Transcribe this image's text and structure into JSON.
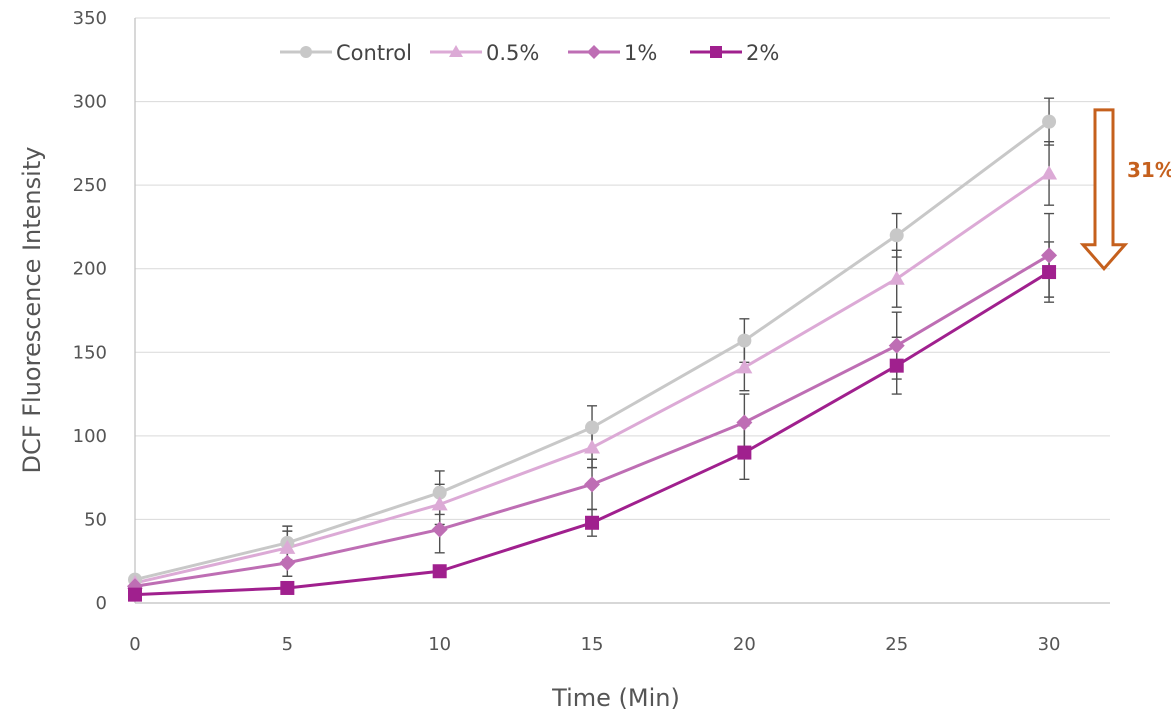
{
  "chart_data": {
    "type": "line",
    "title": "",
    "xlabel": "Time (Min)",
    "ylabel": "DCF Fluorescence Intensity",
    "x": [
      0,
      5,
      10,
      15,
      20,
      25,
      30
    ],
    "xlim": [
      0,
      32
    ],
    "ylim": [
      0,
      350
    ],
    "yticks": [
      0,
      50,
      100,
      150,
      200,
      250,
      300,
      350
    ],
    "xticks": [
      0,
      5,
      10,
      15,
      20,
      25,
      30
    ],
    "grid": "horizontal",
    "legend_position": "top",
    "series": [
      {
        "name": "Control",
        "color": "#c8c8c8",
        "marker": "circle",
        "values": [
          14,
          36,
          66,
          105,
          157,
          220,
          288
        ],
        "errors": [
          2,
          10,
          13,
          13,
          13,
          13,
          14
        ]
      },
      {
        "name": "0.5%",
        "color": "#dcaad6",
        "marker": "triangle",
        "values": [
          12,
          33,
          59,
          93,
          141,
          194,
          257
        ],
        "errors": [
          2,
          10,
          12,
          12,
          14,
          17,
          19
        ]
      },
      {
        "name": "1%",
        "color": "#be6eb4",
        "marker": "diamond",
        "values": [
          10,
          24,
          44,
          71,
          108,
          154,
          208
        ],
        "errors": [
          2,
          8,
          14,
          15,
          17,
          20,
          25
        ]
      },
      {
        "name": "2%",
        "color": "#a0208e",
        "marker": "square",
        "values": [
          5,
          9,
          19,
          48,
          90,
          142,
          198
        ],
        "errors": [
          1,
          2,
          3,
          8,
          16,
          17,
          18
        ]
      }
    ],
    "annotations": [
      {
        "type": "arrow-down",
        "label": "31%",
        "color": "#c5601d",
        "from_value": 295,
        "to_value": 200
      }
    ]
  }
}
